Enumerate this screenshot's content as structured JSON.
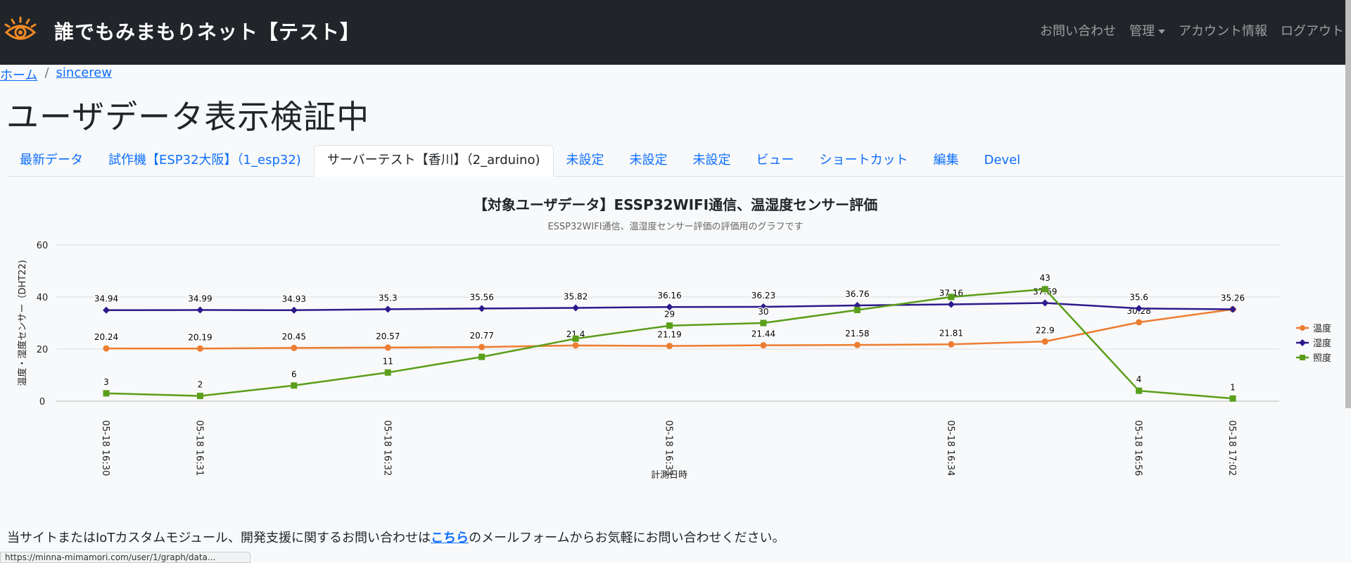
{
  "header": {
    "site_title": "誰でもみまもりネット【テスト】",
    "logo_icon": "eye-logo-icon",
    "nav": {
      "contact": "お問い合わせ",
      "admin": "管理",
      "account": "アカウント情報",
      "logout": "ログアウト"
    }
  },
  "breadcrumb": {
    "home": "ホーム",
    "separator": "/",
    "current": "sincerew"
  },
  "page": {
    "title": "ユーザデータ表示検証中"
  },
  "tabs": [
    {
      "label": "最新データ"
    },
    {
      "label": "試作機【ESP32大阪】（1_esp32)"
    },
    {
      "label": "サーバーテスト【香川】（2_arduino)",
      "active": true
    },
    {
      "label": "未設定"
    },
    {
      "label": "未設定"
    },
    {
      "label": "未設定"
    },
    {
      "label": "ビュー"
    },
    {
      "label": "ショートカット"
    },
    {
      "label": "編集"
    },
    {
      "label": "Devel"
    }
  ],
  "chart_data": {
    "type": "line",
    "title": "【対象ユーザデータ】ESSP32WIFI通信、温湿度センサー評価",
    "subtitle": "ESSP32WIFI通信、温湿度センサー評価の評価用のグラフです",
    "xlabel": "計測日時",
    "ylabel": "温度・湿度センサー（DHT22)",
    "ylim": [
      0,
      60
    ],
    "yticks": [
      0,
      20,
      40,
      60
    ],
    "grid": true,
    "legend_position": "right",
    "x_tick_labels": [
      "05-18 16:30",
      "05-18 16:31",
      "",
      "05-18 16:32",
      "",
      "",
      "05-18 16:33",
      "",
      "",
      "05-18 16:34",
      "",
      "05-18 16:56",
      "05-18 17:02"
    ],
    "series": [
      {
        "name": "温度",
        "color": "#ed7d31",
        "marker": "circle",
        "values": [
          20.24,
          20.19,
          20.45,
          20.57,
          20.77,
          21.4,
          21.19,
          21.44,
          21.58,
          21.81,
          22.9,
          30.28,
          35.26
        ]
      },
      {
        "name": "湿度",
        "color": "#2e1a8c",
        "marker": "diamond",
        "values": [
          34.94,
          34.99,
          34.93,
          35.3,
          35.56,
          35.82,
          36.16,
          36.23,
          36.76,
          37.16,
          37.69,
          35.6,
          35.26
        ]
      },
      {
        "name": "照度",
        "color": "#5a9e1a",
        "marker": "square",
        "values": [
          3,
          2,
          6,
          11,
          17,
          24,
          29,
          30,
          35,
          40,
          43,
          4,
          1
        ],
        "point_labels": [
          "3",
          "2",
          "6",
          "11",
          "",
          "",
          "29",
          "30",
          "",
          "",
          "43",
          "4",
          "1"
        ]
      }
    ]
  },
  "footer": {
    "text_before": "当サイトまたはIoTカスタムモジュール、開発支援に関するお問い合わせは",
    "link": "こちら",
    "text_after": "のメールフォームからお気軽にお問い合わせください。"
  },
  "status_bar": {
    "url": "https://minna-mimamori.com/user/1/graph/data..."
  }
}
